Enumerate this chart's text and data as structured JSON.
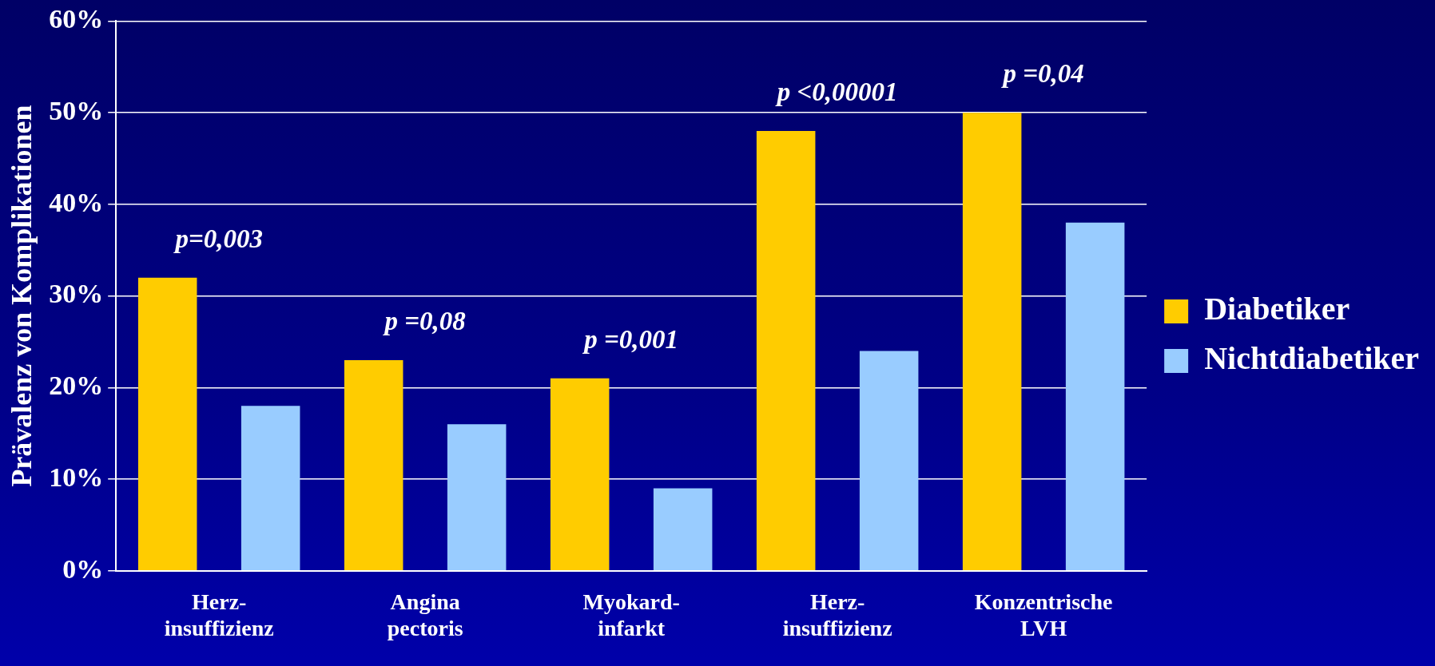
{
  "chart_data": {
    "type": "bar",
    "ylabel": "Prävalenz von Komplikationen",
    "categories": [
      "Herz-\ninsuffizienz",
      "Angina\npectoris",
      "Myokard-\ninfarkt",
      "Herz-\ninsuffizienz",
      "Konzentrische\nLVH"
    ],
    "series": [
      {
        "name": "Diabetiker",
        "color": "#ffcc00",
        "values": [
          32,
          23,
          21,
          48,
          50
        ]
      },
      {
        "name": "Nichtdiabetiker",
        "color": "#99ccff",
        "values": [
          18,
          16,
          9,
          24,
          38
        ]
      }
    ],
    "ylim": [
      0,
      60
    ],
    "yticks": [
      {
        "value": 0,
        "label": "0%"
      },
      {
        "value": 10,
        "label": "10%"
      },
      {
        "value": 20,
        "label": "20%"
      },
      {
        "value": 30,
        "label": "30%"
      },
      {
        "value": 40,
        "label": "40%"
      },
      {
        "value": 50,
        "label": "50%"
      },
      {
        "value": 60,
        "label": "60%"
      }
    ],
    "grid": "y",
    "legend": "right",
    "annotations": [
      "p=0,003",
      "p =0,08",
      "p =0,001",
      "p <0,00001",
      "p =0,04"
    ]
  }
}
